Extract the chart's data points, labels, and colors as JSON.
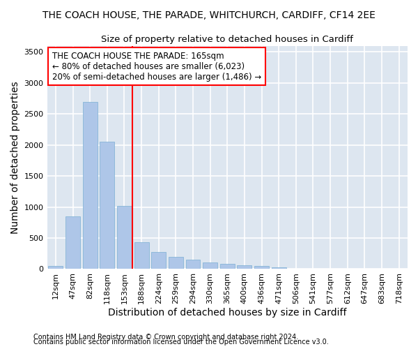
{
  "title": "THE COACH HOUSE, THE PARADE, WHITCHURCH, CARDIFF, CF14 2EE",
  "subtitle": "Size of property relative to detached houses in Cardiff",
  "xlabel": "Distribution of detached houses by size in Cardiff",
  "ylabel": "Number of detached properties",
  "categories": [
    "12sqm",
    "47sqm",
    "82sqm",
    "118sqm",
    "153sqm",
    "188sqm",
    "224sqm",
    "259sqm",
    "294sqm",
    "330sqm",
    "365sqm",
    "400sqm",
    "436sqm",
    "471sqm",
    "506sqm",
    "541sqm",
    "577sqm",
    "612sqm",
    "647sqm",
    "683sqm",
    "718sqm"
  ],
  "values": [
    50,
    850,
    2700,
    2050,
    1020,
    430,
    270,
    200,
    155,
    110,
    80,
    60,
    50,
    30,
    5,
    3,
    2,
    1,
    1,
    0,
    0
  ],
  "bar_color": "#aec6e8",
  "bar_edge_color": "#7aafd4",
  "background_color": "#dde6f0",
  "grid_color": "#ffffff",
  "annotation_line1": "THE COACH HOUSE THE PARADE: 165sqm",
  "annotation_line2": "← 80% of detached houses are smaller (6,023)",
  "annotation_line3": "20% of semi-detached houses are larger (1,486) →",
  "ylim": [
    0,
    3600
  ],
  "yticks": [
    0,
    500,
    1000,
    1500,
    2000,
    2500,
    3000,
    3500
  ],
  "red_line_x": 4.45,
  "footer1": "Contains HM Land Registry data © Crown copyright and database right 2024.",
  "footer2": "Contains public sector information licensed under the Open Government Licence v3.0.",
  "title_fontsize": 10,
  "subtitle_fontsize": 9.5,
  "axis_label_fontsize": 10,
  "tick_fontsize": 8,
  "annotation_fontsize": 8.5,
  "footer_fontsize": 7
}
